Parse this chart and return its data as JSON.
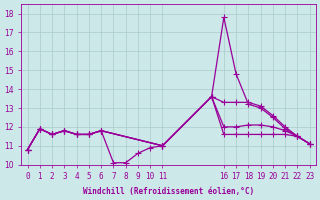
{
  "xlabel": "Windchill (Refroidissement éolien,°C)",
  "bg_color": "#cce8e8",
  "line_color": "#990099",
  "grid_color": "#aacccc",
  "text_color": "#990099",
  "xlim": [
    -0.5,
    23.5
  ],
  "ylim": [
    10,
    18.5
  ],
  "yticks": [
    10,
    11,
    12,
    13,
    14,
    15,
    16,
    17,
    18
  ],
  "xtick_positions": [
    0,
    1,
    2,
    3,
    4,
    5,
    6,
    7,
    8,
    9,
    10,
    11,
    16,
    17,
    18,
    19,
    20,
    21,
    22,
    23
  ],
  "xtick_labels": [
    "0",
    "1",
    "2",
    "3",
    "4",
    "5",
    "6",
    "7",
    "8",
    "9",
    "10",
    "11",
    "16",
    "17",
    "18",
    "19",
    "20",
    "21",
    "22",
    "23"
  ],
  "line1_x": [
    0,
    1,
    2,
    3,
    4,
    5,
    6,
    7,
    8,
    9,
    10,
    11,
    15,
    16,
    17,
    18,
    19,
    20,
    21,
    22,
    23
  ],
  "line1_y": [
    10.8,
    11.9,
    11.6,
    11.8,
    11.6,
    11.6,
    11.8,
    10.1,
    10.1,
    10.6,
    10.9,
    11.0,
    13.6,
    17.8,
    14.8,
    13.2,
    13.0,
    12.5,
    11.9,
    11.5,
    11.1
  ],
  "line2_x": [
    0,
    1,
    2,
    3,
    4,
    5,
    6,
    11,
    15,
    16,
    17,
    18,
    19,
    20,
    21,
    22,
    23
  ],
  "line2_y": [
    10.8,
    11.9,
    11.6,
    11.8,
    11.6,
    11.6,
    11.8,
    11.0,
    13.6,
    13.3,
    13.3,
    13.3,
    13.1,
    12.6,
    12.0,
    11.5,
    11.1
  ],
  "line3_x": [
    0,
    1,
    2,
    3,
    4,
    5,
    6,
    11,
    15,
    16,
    17,
    18,
    19,
    20,
    21,
    22,
    23
  ],
  "line3_y": [
    10.8,
    11.9,
    11.6,
    11.8,
    11.6,
    11.6,
    11.8,
    11.0,
    13.6,
    12.0,
    12.0,
    12.1,
    12.1,
    12.0,
    11.8,
    11.5,
    11.1
  ],
  "line4_x": [
    0,
    1,
    2,
    3,
    4,
    5,
    6,
    11,
    15,
    16,
    17,
    18,
    19,
    20,
    21,
    22,
    23
  ],
  "line4_y": [
    10.8,
    11.9,
    11.6,
    11.8,
    11.6,
    11.6,
    11.8,
    11.0,
    13.6,
    11.6,
    11.6,
    11.6,
    11.6,
    11.6,
    11.6,
    11.5,
    11.1
  ]
}
